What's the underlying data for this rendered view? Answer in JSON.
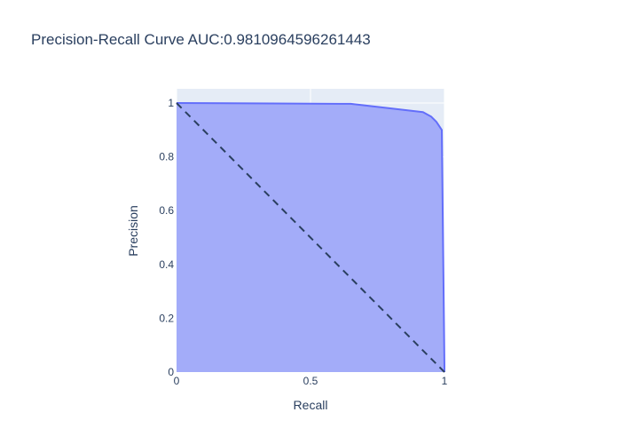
{
  "chart_data": {
    "type": "area",
    "title": "Precision-Recall Curve AUC:0.9810964596261443",
    "xlabel": "Recall",
    "ylabel": "Precision",
    "xlim": [
      0,
      1
    ],
    "ylim": [
      0,
      1
    ],
    "x_ticks": [
      "0",
      "0.5",
      "1"
    ],
    "y_ticks": [
      "0",
      "0.2",
      "0.4",
      "0.6",
      "0.8",
      "1"
    ],
    "grid": true,
    "series": [
      {
        "fill": "tozeroy",
        "color": "#636efa",
        "fill_color": "#a3acf9",
        "x": [
          0,
          0.65,
          0.92,
          0.95,
          0.97,
          0.99,
          1.0,
          1.0
        ],
        "y": [
          1.0,
          0.997,
          0.966,
          0.95,
          0.93,
          0.9,
          0.02,
          0
        ]
      }
    ],
    "reference_line": {
      "style": "dashed",
      "color": "#2a3f5f",
      "x": [
        0,
        1
      ],
      "y": [
        1,
        0
      ]
    },
    "plot_background": "#e5ecf6"
  }
}
